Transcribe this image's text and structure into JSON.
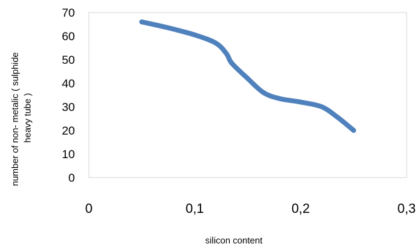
{
  "chart_data": {
    "type": "line",
    "title": "",
    "xlabel": "silicon content",
    "ylabel_lines": [
      "number of non- metalic ( sulphide",
      "heavy tube )"
    ],
    "xlim": [
      0,
      0.3
    ],
    "ylim": [
      0,
      70
    ],
    "x_ticks": [
      0,
      0.1,
      0.2,
      0.3
    ],
    "x_tick_labels": [
      "0",
      "0,1",
      "0,2",
      "0,3"
    ],
    "y_ticks": [
      0,
      10,
      20,
      30,
      40,
      50,
      60,
      70
    ],
    "y_tick_labels": [
      "0",
      "10",
      "20",
      "30",
      "40",
      "50",
      "60",
      "70"
    ],
    "grid": false,
    "legend": "none",
    "series": [
      {
        "color": "#4F81BD",
        "points": [
          {
            "x": 0.05,
            "y": 66
          },
          {
            "x": 0.075,
            "y": 63.5
          },
          {
            "x": 0.1,
            "y": 60.5
          },
          {
            "x": 0.12,
            "y": 57
          },
          {
            "x": 0.13,
            "y": 52.5
          },
          {
            "x": 0.135,
            "y": 48.5
          },
          {
            "x": 0.15,
            "y": 42
          },
          {
            "x": 0.165,
            "y": 36
          },
          {
            "x": 0.18,
            "y": 33.5
          },
          {
            "x": 0.2,
            "y": 32
          },
          {
            "x": 0.22,
            "y": 30
          },
          {
            "x": 0.235,
            "y": 25.5
          },
          {
            "x": 0.25,
            "y": 20
          }
        ]
      }
    ]
  }
}
